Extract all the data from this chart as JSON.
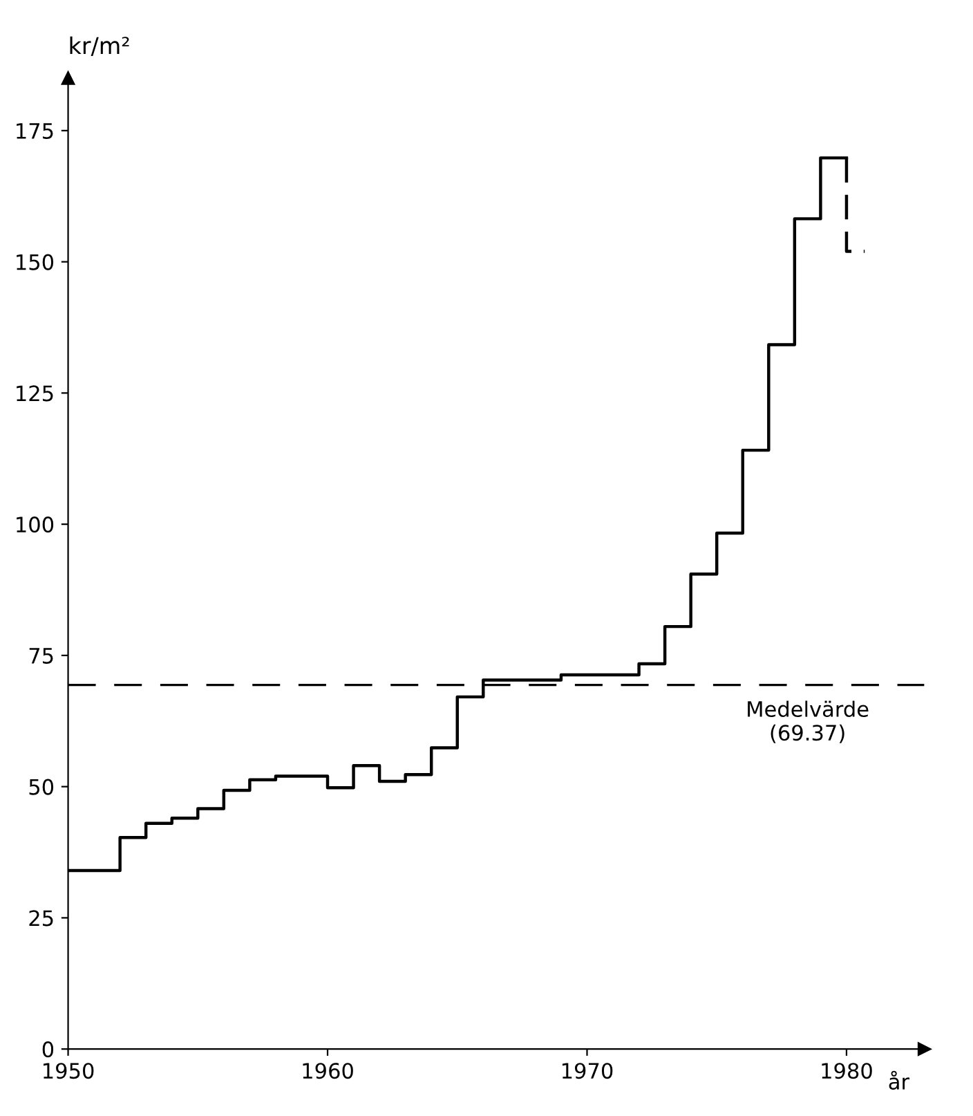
{
  "chart_data": {
    "type": "step",
    "ylabel": "kr/m²",
    "xlabel": "år",
    "xlim": [
      1950,
      1983
    ],
    "ylim": [
      0,
      185
    ],
    "xticks": [
      1950,
      1960,
      1970,
      1980
    ],
    "yticks": [
      0,
      25,
      50,
      75,
      100,
      125,
      150,
      175
    ],
    "series": [
      {
        "color": "#000000",
        "line_style": "solid",
        "x": [
          1950,
          1952,
          1953,
          1954,
          1955,
          1956,
          1957,
          1958,
          1960,
          1961,
          1962,
          1963,
          1964,
          1965,
          1966,
          1969,
          1972,
          1973,
          1974,
          1975,
          1976,
          1977,
          1978,
          1979,
          1980
        ],
        "values": [
          34,
          40.3,
          43,
          44,
          45.8,
          49.3,
          51.3,
          52,
          49.8,
          54,
          51,
          52.3,
          57.4,
          67.1,
          70.3,
          71.3,
          73.4,
          80.5,
          90.5,
          98.3,
          114.1,
          134.2,
          158.2,
          169.8,
          169.8
        ]
      },
      {
        "type": "line",
        "color": "#000000",
        "line_style": "dashed",
        "x": [
          1980,
          1980,
          1980.7
        ],
        "values": [
          169.8,
          152,
          152
        ]
      }
    ],
    "ref_lines": [
      {
        "axis": "y",
        "value": 69.37,
        "label": "Medelvärde\n(69.37)",
        "color": "#000000",
        "line_style": "dashed"
      }
    ],
    "grid": false,
    "legend": false
  }
}
